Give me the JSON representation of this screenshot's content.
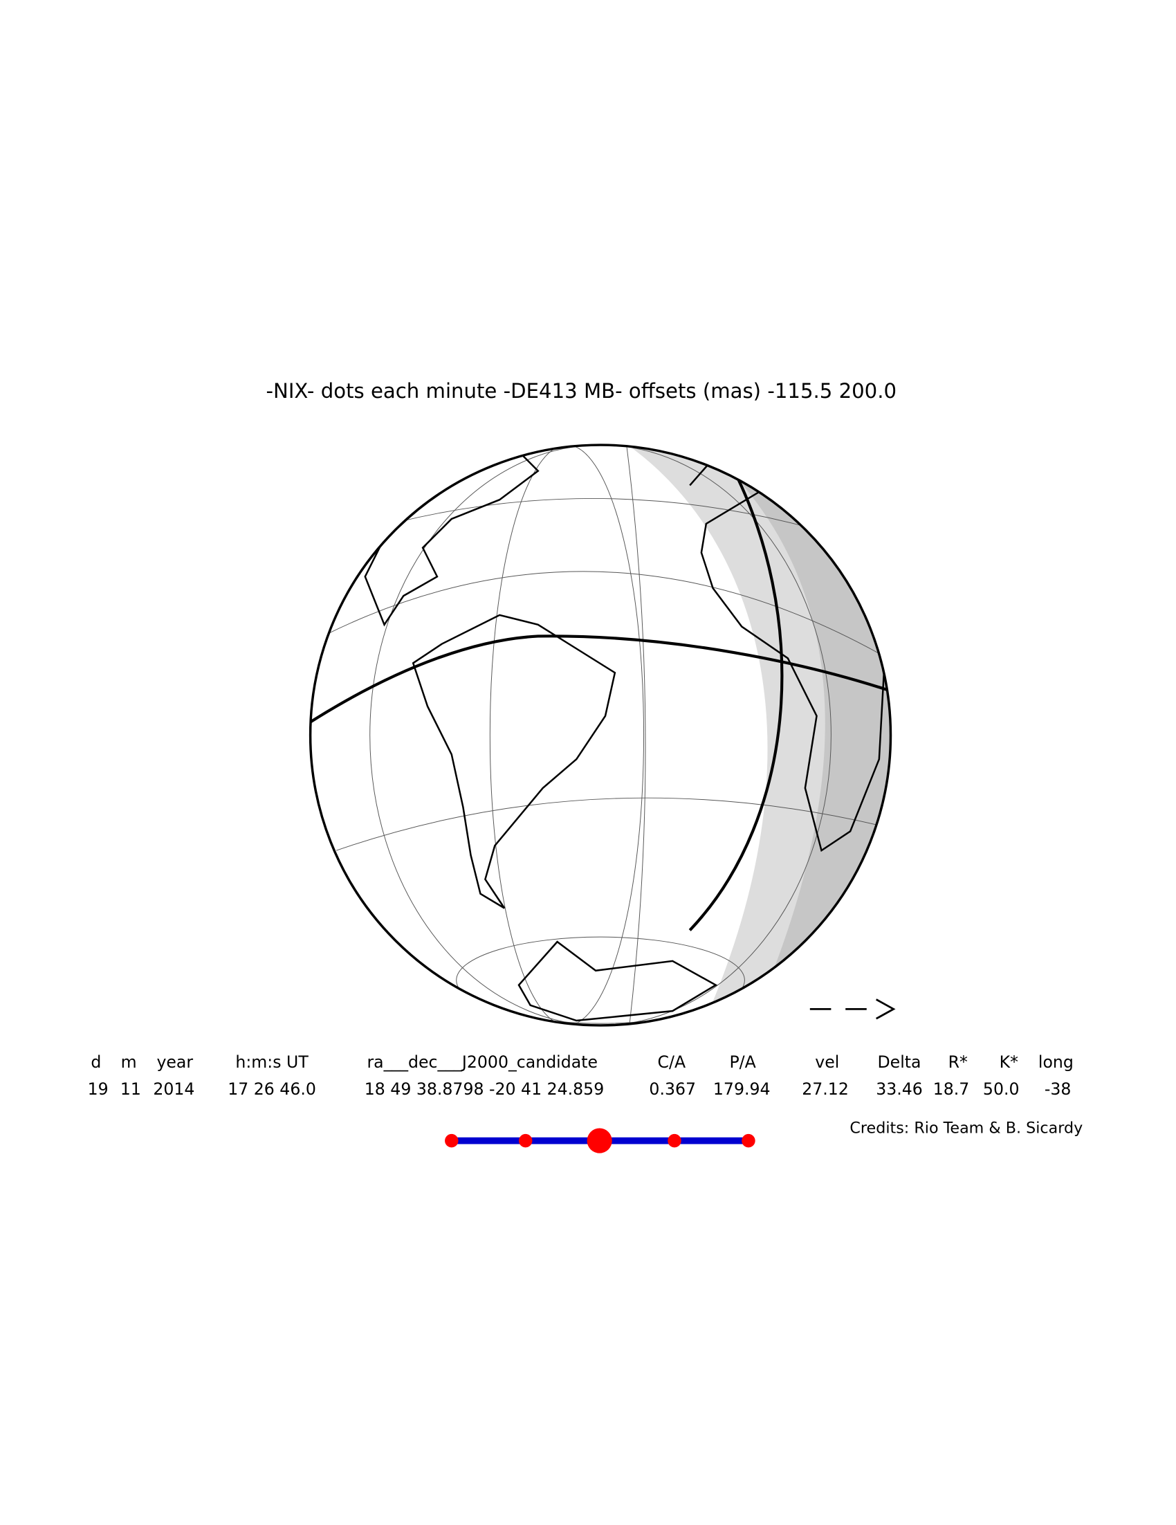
{
  "title": "-NIX- dots each minute -DE413 MB- offsets (mas) -115.5  200.0",
  "table": {
    "header": [
      "d",
      "m",
      "year",
      "h:m:s UT",
      "ra___dec___J2000_candidate",
      "C/A",
      "P/A",
      "vel",
      "Delta",
      "R*",
      "K*",
      "long"
    ],
    "row": [
      "19",
      "11",
      "2014",
      "17 26 46.0",
      "18 49 38.8798 -20 41 24.859",
      "0.367",
      "179.94",
      "27.12",
      "33.46",
      "18.7",
      "50.0",
      "-38"
    ]
  },
  "credits": "Credits: Rio Team & B. Sicardy"
}
